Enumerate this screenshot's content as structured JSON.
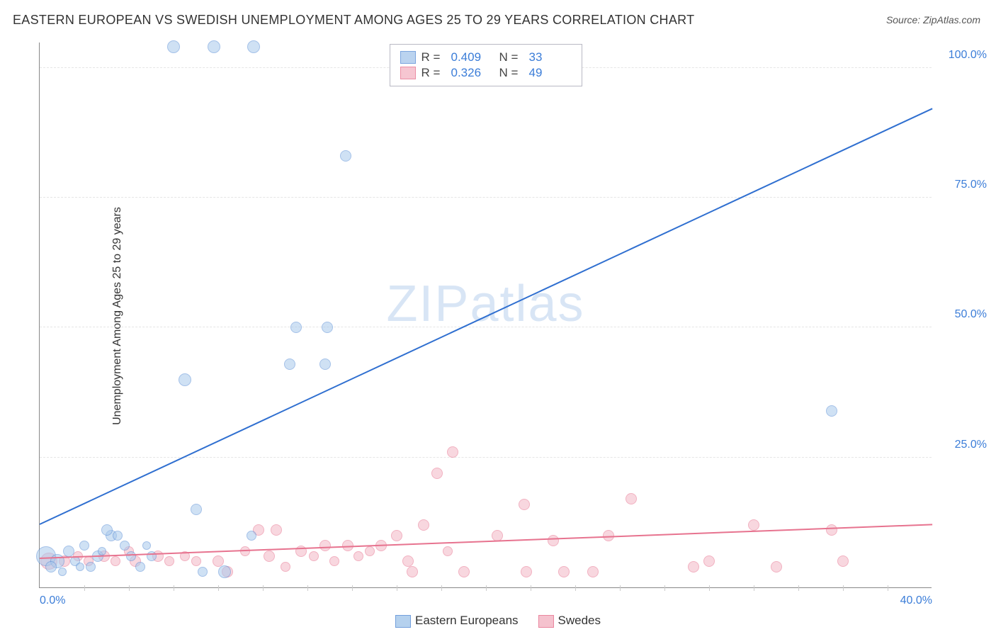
{
  "title": "EASTERN EUROPEAN VS SWEDISH UNEMPLOYMENT AMONG AGES 25 TO 29 YEARS CORRELATION CHART",
  "source": "Source: ZipAtlas.com",
  "ylabel": "Unemployment Among Ages 25 to 29 years",
  "watermark": "ZIPatlas",
  "chart": {
    "type": "scatter",
    "xlim": [
      0,
      40
    ],
    "ylim": [
      0,
      105
    ],
    "background_color": "#ffffff",
    "grid_color": "#e5e5e5",
    "axis_color": "#888888",
    "yticks": [
      {
        "v": 25,
        "label": "25.0%"
      },
      {
        "v": 50,
        "label": "50.0%"
      },
      {
        "v": 75,
        "label": "75.0%"
      },
      {
        "v": 100,
        "label": "100.0%"
      }
    ],
    "xticks_labeled": [
      {
        "v": 0,
        "label": "0.0%"
      },
      {
        "v": 40,
        "label": "40.0%"
      }
    ],
    "xticks_minor": [
      2,
      4,
      6,
      8,
      10,
      12,
      14,
      16,
      18,
      20,
      22,
      24,
      26,
      28,
      30,
      32,
      34,
      36,
      38
    ],
    "tick_color": "#3b7dd8",
    "tick_fontsize": 16,
    "label_fontsize": 16,
    "title_fontsize": 18,
    "series": {
      "eastern": {
        "label": "Eastern Europeans",
        "fill": "#a9c9ec",
        "stroke": "#5b8fd6",
        "fill_opacity": 0.55,
        "marker_stroke_width": 1.2,
        "R": "0.409",
        "N": "33",
        "trend": {
          "x1": 0,
          "y1": 12,
          "x2": 40,
          "y2": 92,
          "color": "#2f6fd0",
          "width": 2
        },
        "points": [
          {
            "x": 0.3,
            "y": 6,
            "r": 14
          },
          {
            "x": 0.8,
            "y": 5,
            "r": 10
          },
          {
            "x": 1.3,
            "y": 7,
            "r": 8
          },
          {
            "x": 1.6,
            "y": 5,
            "r": 7
          },
          {
            "x": 2.0,
            "y": 8,
            "r": 7
          },
          {
            "x": 2.3,
            "y": 4,
            "r": 7
          },
          {
            "x": 2.6,
            "y": 6,
            "r": 8
          },
          {
            "x": 3.2,
            "y": 10,
            "r": 8
          },
          {
            "x": 3.0,
            "y": 11,
            "r": 8
          },
          {
            "x": 3.5,
            "y": 10,
            "r": 7
          },
          {
            "x": 3.8,
            "y": 8,
            "r": 7
          },
          {
            "x": 4.1,
            "y": 6,
            "r": 7
          },
          {
            "x": 4.5,
            "y": 4,
            "r": 7
          },
          {
            "x": 5.0,
            "y": 6,
            "r": 7
          },
          {
            "x": 6.5,
            "y": 40,
            "r": 9
          },
          {
            "x": 7.0,
            "y": 15,
            "r": 8
          },
          {
            "x": 7.3,
            "y": 3,
            "r": 7
          },
          {
            "x": 8.3,
            "y": 3,
            "r": 9
          },
          {
            "x": 9.5,
            "y": 10,
            "r": 7
          },
          {
            "x": 11.2,
            "y": 43,
            "r": 8
          },
          {
            "x": 11.5,
            "y": 50,
            "r": 8
          },
          {
            "x": 12.8,
            "y": 43,
            "r": 8
          },
          {
            "x": 12.9,
            "y": 50,
            "r": 8
          },
          {
            "x": 13.7,
            "y": 83,
            "r": 8
          },
          {
            "x": 6.0,
            "y": 104,
            "r": 9
          },
          {
            "x": 7.8,
            "y": 104,
            "r": 9
          },
          {
            "x": 9.6,
            "y": 104,
            "r": 9
          },
          {
            "x": 35.5,
            "y": 34,
            "r": 8
          },
          {
            "x": 1.0,
            "y": 3,
            "r": 6
          },
          {
            "x": 1.8,
            "y": 4,
            "r": 6
          },
          {
            "x": 0.5,
            "y": 4,
            "r": 8
          },
          {
            "x": 2.8,
            "y": 7,
            "r": 6
          },
          {
            "x": 4.8,
            "y": 8,
            "r": 6
          }
        ]
      },
      "swedes": {
        "label": "Swedes",
        "fill": "#f4b8c6",
        "stroke": "#e7738f",
        "fill_opacity": 0.55,
        "marker_stroke_width": 1.2,
        "R": "0.326",
        "N": "49",
        "trend": {
          "x1": 0,
          "y1": 5.5,
          "x2": 40,
          "y2": 12,
          "color": "#e7738f",
          "width": 2
        },
        "points": [
          {
            "x": 0.4,
            "y": 5,
            "r": 12
          },
          {
            "x": 1.1,
            "y": 5,
            "r": 8
          },
          {
            "x": 1.7,
            "y": 6,
            "r": 7
          },
          {
            "x": 2.2,
            "y": 5,
            "r": 7
          },
          {
            "x": 2.9,
            "y": 6,
            "r": 8
          },
          {
            "x": 3.4,
            "y": 5,
            "r": 7
          },
          {
            "x": 4.0,
            "y": 7,
            "r": 7
          },
          {
            "x": 4.3,
            "y": 5,
            "r": 8
          },
          {
            "x": 5.3,
            "y": 6,
            "r": 8
          },
          {
            "x": 5.8,
            "y": 5,
            "r": 7
          },
          {
            "x": 6.5,
            "y": 6,
            "r": 7
          },
          {
            "x": 7.0,
            "y": 5,
            "r": 7
          },
          {
            "x": 8.0,
            "y": 5,
            "r": 8
          },
          {
            "x": 8.4,
            "y": 3,
            "r": 8
          },
          {
            "x": 9.2,
            "y": 7,
            "r": 7
          },
          {
            "x": 9.8,
            "y": 11,
            "r": 8
          },
          {
            "x": 10.3,
            "y": 6,
            "r": 8
          },
          {
            "x": 10.6,
            "y": 11,
            "r": 8
          },
          {
            "x": 11.0,
            "y": 4,
            "r": 7
          },
          {
            "x": 11.7,
            "y": 7,
            "r": 8
          },
          {
            "x": 12.3,
            "y": 6,
            "r": 7
          },
          {
            "x": 12.8,
            "y": 8,
            "r": 8
          },
          {
            "x": 13.2,
            "y": 5,
            "r": 7
          },
          {
            "x": 13.8,
            "y": 8,
            "r": 8
          },
          {
            "x": 14.3,
            "y": 6,
            "r": 7
          },
          {
            "x": 14.8,
            "y": 7,
            "r": 7
          },
          {
            "x": 15.3,
            "y": 8,
            "r": 8
          },
          {
            "x": 16.0,
            "y": 10,
            "r": 8
          },
          {
            "x": 16.5,
            "y": 5,
            "r": 8
          },
          {
            "x": 16.7,
            "y": 3,
            "r": 8
          },
          {
            "x": 17.2,
            "y": 12,
            "r": 8
          },
          {
            "x": 17.8,
            "y": 22,
            "r": 8
          },
          {
            "x": 18.5,
            "y": 26,
            "r": 8
          },
          {
            "x": 18.3,
            "y": 7,
            "r": 7
          },
          {
            "x": 19.0,
            "y": 3,
            "r": 8
          },
          {
            "x": 20.5,
            "y": 10,
            "r": 8
          },
          {
            "x": 21.7,
            "y": 16,
            "r": 8
          },
          {
            "x": 21.8,
            "y": 3,
            "r": 8
          },
          {
            "x": 23.0,
            "y": 9,
            "r": 8
          },
          {
            "x": 23.5,
            "y": 3,
            "r": 8
          },
          {
            "x": 24.8,
            "y": 3,
            "r": 8
          },
          {
            "x": 25.5,
            "y": 10,
            "r": 8
          },
          {
            "x": 26.5,
            "y": 17,
            "r": 8
          },
          {
            "x": 29.3,
            "y": 4,
            "r": 8
          },
          {
            "x": 30.0,
            "y": 5,
            "r": 8
          },
          {
            "x": 32.0,
            "y": 12,
            "r": 8
          },
          {
            "x": 33.0,
            "y": 4,
            "r": 8
          },
          {
            "x": 35.5,
            "y": 11,
            "r": 8
          },
          {
            "x": 36.0,
            "y": 5,
            "r": 8
          }
        ]
      }
    }
  },
  "legend_top": {
    "r_label": "R  =",
    "n_label": "N  ="
  }
}
